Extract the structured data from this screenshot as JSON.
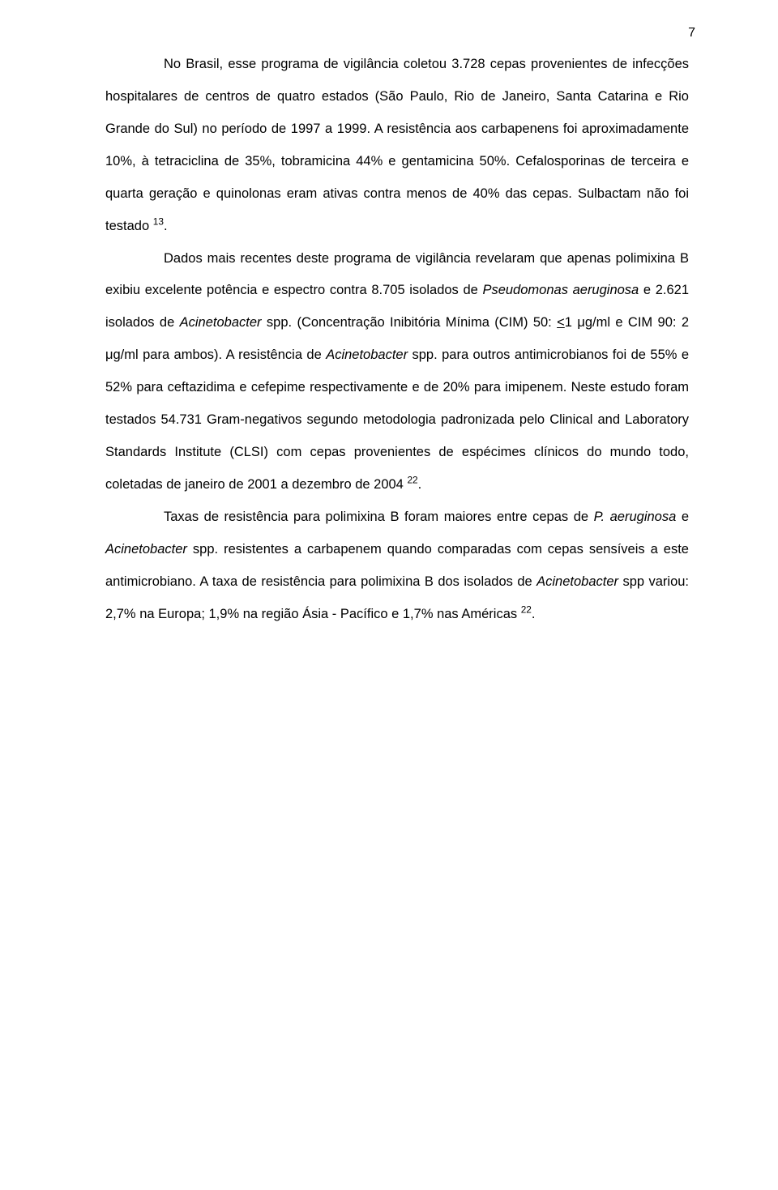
{
  "page_number": "7",
  "paragraphs": {
    "p1_a": "No Brasil, esse programa de vigilância coletou 3.728 cepas provenientes de infecções hospitalares de centros de quatro estados (São Paulo, Rio de Janeiro, Santa Catarina e Rio Grande do Sul) no período de 1997 a 1999. A resistência aos carbapenens foi aproximadamente 10%, à tetraciclina de 35%, tobramicina 44% e gentamicina 50%. Cefalosporinas de terceira e quarta geração e quinolonas eram ativas contra menos de 40% das cepas. Sulbactam não foi testado ",
    "p1_sup": "13",
    "p1_b": ".",
    "p2_a": "Dados mais recentes deste programa de vigilância revelaram que apenas polimixina B exibiu excelente potência e espectro contra 8.705 isolados de ",
    "p2_it1": "Pseudomonas aeruginosa",
    "p2_b": " e 2.621 isolados de ",
    "p2_it2": "Acinetobacter",
    "p2_c": " spp. (Concentração Inibitória Mínima (CIM) 50: ",
    "p2_u": "<",
    "p2_d": "1 μg/ml e CIM 90: 2 μg/ml para ambos). A resistência de ",
    "p2_it3": "Acinetobacter",
    "p2_e": " spp. para outros antimicrobianos foi de 55% e 52% para ceftazidima e cefepime respectivamente e de 20% para imipenem. Neste estudo foram testados 54.731 Gram-negativos segundo metodologia padronizada pelo Clinical and Laboratory Standards Institute (CLSI) com cepas provenientes de espécimes clínicos do mundo todo, coletadas de janeiro de 2001 a dezembro de 2004 ",
    "p2_sup": "22",
    "p2_f": ".",
    "p3_a": "Taxas de resistência para polimixina B foram maiores entre cepas de ",
    "p3_it1": "P. aeruginosa",
    "p3_b": " e ",
    "p3_it2": "Acinetobacter",
    "p3_c": " spp. resistentes a carbapenem quando comparadas com cepas sensíveis a este antimicrobiano. A taxa de resistência para polimixina B dos isolados de ",
    "p3_it3": "Acinetobacter",
    "p3_d": " spp variou: 2,7% na Europa; 1,9% na região Ásia - Pacífico e 1,7% nas Américas ",
    "p3_sup": "22",
    "p3_e": "."
  }
}
